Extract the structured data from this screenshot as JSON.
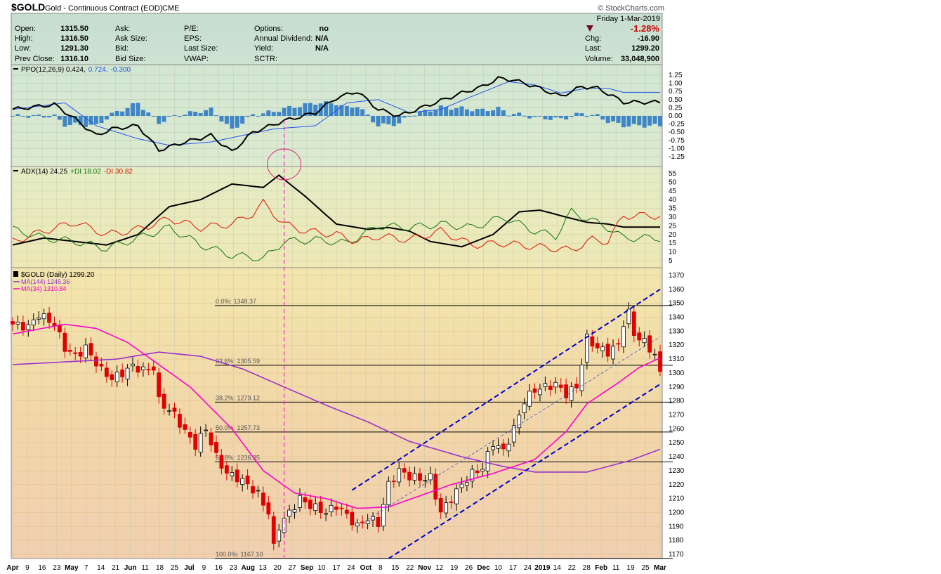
{
  "header": {
    "symbol": "$GOLD",
    "name": "Gold - Continuous Contract (EOD)",
    "exchange": "CME",
    "watermark": "© StockCharts.com",
    "date": "Friday  1-Mar-2019"
  },
  "quote": {
    "open_label": "Open:",
    "open": "1315.50",
    "high_label": "High:",
    "high": "1316.50",
    "low_label": "Low:",
    "low": "1291.30",
    "prev_close_label": "Prev Close:",
    "prev_close": "1316.10",
    "ask_label": "Ask:",
    "ask_size_label": "Ask Size:",
    "bid_label": "Bid:",
    "bid_size_label": "Bid Size:",
    "pe_label": "P/E:",
    "eps_label": "EPS:",
    "last_size_label": "Last Size:",
    "vwap_label": "VWAP:",
    "options_label": "Options:",
    "options": "no",
    "annual_dividend_label": "Annual Dividend:",
    "annual_dividend": "N/A",
    "yield_label": "Yield:",
    "yield": "N/A",
    "sctr_label": "SCTR:",
    "pct_change": "-1.28%",
    "chg_label": "Chg:",
    "chg": "-16.90",
    "last_label": "Last:",
    "last": "1299.20",
    "volume_label": "Volume:",
    "volume": "33,048,900"
  },
  "colors": {
    "up": "#000000",
    "down": "#e00000",
    "ma144": "#9933cc",
    "ma34": "#ff00cc",
    "ppo": "#000000",
    "ppo_signal": "#2255ee",
    "ppo_hist": "#3f86c6",
    "adx": "#000000",
    "plus_di": "#117711",
    "minus_di": "#dd1100",
    "channel": "#0000cc",
    "pct_change": "#cc0000"
  },
  "chart_data": [
    {
      "type": "line",
      "panel": "PPO",
      "legend": [
        "PPO(12,26,9) 0.424,",
        "0.724,",
        "-0.300"
      ],
      "yticks": [
        "1.25",
        "1.00",
        "0.75",
        "0.50",
        "0.25",
        "0.00",
        "-0.25",
        "-0.50",
        "-0.75",
        "-1.00",
        "-1.25"
      ],
      "ylim": [
        -1.4,
        1.4
      ],
      "series": [
        {
          "key": "ppo",
          "anchors": [
            [
              0,
              0.2
            ],
            [
              8,
              0.35
            ],
            [
              12,
              -0.1
            ],
            [
              16,
              -0.6
            ],
            [
              19,
              -0.4
            ],
            [
              24,
              -0.3
            ],
            [
              28,
              -1.05
            ],
            [
              33,
              -0.8
            ],
            [
              38,
              -0.6
            ],
            [
              42,
              -1.1
            ],
            [
              46,
              -0.5
            ],
            [
              52,
              -0.15
            ],
            [
              58,
              0.1
            ],
            [
              62,
              0.55
            ],
            [
              66,
              0.75
            ],
            [
              70,
              0.2
            ],
            [
              74,
              0.0
            ],
            [
              80,
              0.35
            ],
            [
              86,
              0.7
            ],
            [
              90,
              0.9
            ],
            [
              93,
              1.15
            ],
            [
              96,
              1.1
            ],
            [
              100,
              0.9
            ],
            [
              105,
              0.6
            ],
            [
              109,
              0.9
            ],
            [
              112,
              0.85
            ],
            [
              115,
              0.6
            ],
            [
              117,
              0.42
            ]
          ]
        },
        {
          "key": "signal",
          "anchors": [
            [
              0,
              0.2
            ],
            [
              10,
              0.4
            ],
            [
              16,
              -0.3
            ],
            [
              24,
              -0.7
            ],
            [
              30,
              -0.9
            ],
            [
              38,
              -0.8
            ],
            [
              44,
              -0.6
            ],
            [
              50,
              -0.4
            ],
            [
              58,
              -0.3
            ],
            [
              64,
              0.4
            ],
            [
              70,
              0.5
            ],
            [
              76,
              0.1
            ],
            [
              82,
              0.2
            ],
            [
              88,
              0.6
            ],
            [
              95,
              1.05
            ],
            [
              100,
              0.95
            ],
            [
              105,
              0.7
            ],
            [
              110,
              0.85
            ],
            [
              114,
              0.85
            ],
            [
              117,
              0.72
            ]
          ]
        }
      ]
    },
    {
      "type": "line",
      "panel": "ADX",
      "legend": [
        "ADX(14) 24.25",
        "+DI 18.02",
        "-DI 30.82"
      ],
      "yticks": [
        "55",
        "50",
        "45",
        "40",
        "35",
        "30",
        "25",
        "20",
        "15",
        "10",
        "5"
      ],
      "ylim": [
        3,
        57
      ],
      "series": [
        {
          "key": "adx",
          "anchors": [
            [
              0,
              14
            ],
            [
              6,
              18
            ],
            [
              12,
              16
            ],
            [
              18,
              14
            ],
            [
              24,
              20
            ],
            [
              30,
              36
            ],
            [
              36,
              40
            ],
            [
              42,
              49
            ],
            [
              48,
              47
            ],
            [
              51,
              54
            ],
            [
              56,
              42
            ],
            [
              62,
              26
            ],
            [
              68,
              23
            ],
            [
              72,
              24
            ],
            [
              76,
              22
            ],
            [
              80,
              16
            ],
            [
              86,
              13
            ],
            [
              92,
              20
            ],
            [
              97,
              33
            ],
            [
              101,
              34
            ],
            [
              106,
              30
            ],
            [
              110,
              27
            ],
            [
              114,
              26
            ],
            [
              117,
              24.25
            ]
          ]
        },
        {
          "key": "plus_di",
          "anchors": [
            [
              0,
              23
            ],
            [
              6,
              18
            ],
            [
              12,
              16
            ],
            [
              18,
              12
            ],
            [
              24,
              18
            ],
            [
              30,
              24
            ],
            [
              36,
              14
            ],
            [
              42,
              8
            ],
            [
              46,
              7
            ],
            [
              48,
              6
            ],
            [
              52,
              16
            ],
            [
              58,
              17
            ],
            [
              64,
              15
            ],
            [
              70,
              25
            ],
            [
              76,
              24
            ],
            [
              82,
              26
            ],
            [
              88,
              24
            ],
            [
              94,
              30
            ],
            [
              100,
              22
            ],
            [
              104,
              19
            ],
            [
              107,
              33
            ],
            [
              111,
              28
            ],
            [
              114,
              24
            ],
            [
              117,
              18
            ]
          ]
        },
        {
          "key": "minus_di",
          "anchors": [
            [
              0,
              16
            ],
            [
              6,
              22
            ],
            [
              12,
              27
            ],
            [
              18,
              20
            ],
            [
              24,
              23
            ],
            [
              30,
              29
            ],
            [
              36,
              24
            ],
            [
              42,
              26
            ],
            [
              46,
              32
            ],
            [
              48,
              38
            ],
            [
              52,
              26
            ],
            [
              56,
              22
            ],
            [
              62,
              20
            ],
            [
              66,
              16
            ],
            [
              70,
              19
            ],
            [
              76,
              17
            ],
            [
              82,
              22
            ],
            [
              88,
              14
            ],
            [
              94,
              15
            ],
            [
              100,
              13
            ],
            [
              104,
              12
            ],
            [
              107,
              11
            ],
            [
              111,
              17
            ],
            [
              114,
              16
            ],
            [
              117,
              30.82
            ]
          ]
        }
      ]
    },
    {
      "type": "candlestick",
      "panel": "Price",
      "legend": [
        "$GOLD (Daily) 1299.20",
        "MA(144) 1245.36",
        "MA(34) 1310.84"
      ],
      "ylim": [
        1167,
        1372
      ],
      "yticks": [
        1370,
        1360,
        1350,
        1340,
        1330,
        1320,
        1310,
        1300,
        1290,
        1280,
        1270,
        1260,
        1250,
        1240,
        1230,
        1220,
        1210,
        1200,
        1190,
        1180,
        1170
      ],
      "xticks": [
        "Apr",
        "9",
        "16",
        "23",
        "May",
        "7",
        "14",
        "21",
        "Jun",
        "11",
        "18",
        "25",
        "Jul",
        "9",
        "16",
        "23",
        "Aug",
        "13",
        "20",
        "27",
        "Sep",
        "10",
        "17",
        "24",
        "Oct",
        "8",
        "15",
        "22",
        "Nov",
        "12",
        "19",
        "26",
        "Dec",
        "10",
        "17",
        "24",
        "2019",
        "14",
        "22",
        "28",
        "Feb",
        "11",
        "19",
        "25",
        "Mar"
      ],
      "bold_xticks": [
        "Apr",
        "May",
        "Jun",
        "Jul",
        "Aug",
        "Sep",
        "Oct",
        "Nov",
        "Dec",
        "2019",
        "Feb",
        "Mar"
      ],
      "close_anchors": [
        [
          0,
          1335
        ],
        [
          3,
          1333
        ],
        [
          5,
          1342
        ],
        [
          8,
          1335
        ],
        [
          10,
          1318
        ],
        [
          12,
          1312
        ],
        [
          14,
          1318
        ],
        [
          17,
          1302
        ],
        [
          19,
          1296
        ],
        [
          21,
          1300
        ],
        [
          23,
          1305
        ],
        [
          25,
          1302
        ],
        [
          27,
          1304
        ],
        [
          28,
          1280
        ],
        [
          31,
          1270
        ],
        [
          33,
          1258
        ],
        [
          35,
          1248
        ],
        [
          37,
          1260
        ],
        [
          39,
          1240
        ],
        [
          41,
          1228
        ],
        [
          43,
          1225
        ],
        [
          45,
          1220
        ],
        [
          47,
          1213
        ],
        [
          49,
          1200
        ],
        [
          50,
          1175
        ],
        [
          51,
          1190
        ],
        [
          53,
          1200
        ],
        [
          55,
          1210
        ],
        [
          57,
          1205
        ],
        [
          60,
          1200
        ],
        [
          62,
          1205
        ],
        [
          64,
          1198
        ],
        [
          66,
          1190
        ],
        [
          68,
          1196
        ],
        [
          70,
          1192
        ],
        [
          72,
          1220
        ],
        [
          74,
          1230
        ],
        [
          76,
          1226
        ],
        [
          78,
          1224
        ],
        [
          80,
          1225
        ],
        [
          81,
          1212
        ],
        [
          82,
          1200
        ],
        [
          84,
          1210
        ],
        [
          86,
          1220
        ],
        [
          88,
          1228
        ],
        [
          90,
          1232
        ],
        [
          92,
          1250
        ],
        [
          94,
          1244
        ],
        [
          96,
          1260
        ],
        [
          98,
          1280
        ],
        [
          100,
          1288
        ],
        [
          102,
          1290
        ],
        [
          104,
          1292
        ],
        [
          106,
          1285
        ],
        [
          108,
          1290
        ],
        [
          110,
          1325
        ],
        [
          112,
          1318
        ],
        [
          114,
          1315
        ],
        [
          116,
          1320
        ],
        [
          117,
          1336
        ],
        [
          118,
          1343
        ],
        [
          119,
          1328
        ],
        [
          121,
          1322
        ],
        [
          123,
          1313
        ],
        [
          124,
          1299.2
        ]
      ],
      "ma144_anchors": [
        [
          0,
          1306
        ],
        [
          20,
          1310
        ],
        [
          28,
          1315
        ],
        [
          36,
          1312
        ],
        [
          44,
          1303
        ],
        [
          52,
          1290
        ],
        [
          60,
          1277
        ],
        [
          68,
          1265
        ],
        [
          76,
          1251
        ],
        [
          86,
          1240
        ],
        [
          94,
          1233
        ],
        [
          100,
          1229
        ],
        [
          110,
          1229
        ],
        [
          118,
          1237
        ],
        [
          124,
          1245.36
        ]
      ],
      "ma34_anchors": [
        [
          0,
          1328
        ],
        [
          10,
          1335
        ],
        [
          16,
          1332
        ],
        [
          22,
          1322
        ],
        [
          28,
          1306
        ],
        [
          34,
          1290
        ],
        [
          42,
          1260
        ],
        [
          48,
          1230
        ],
        [
          54,
          1214
        ],
        [
          60,
          1210
        ],
        [
          66,
          1203
        ],
        [
          72,
          1204
        ],
        [
          78,
          1212
        ],
        [
          84,
          1220
        ],
        [
          92,
          1228
        ],
        [
          100,
          1238
        ],
        [
          106,
          1258
        ],
        [
          110,
          1278
        ],
        [
          116,
          1293
        ],
        [
          120,
          1304
        ],
        [
          124,
          1310.84
        ]
      ],
      "fibonacci": [
        {
          "label": "0.0%: 1348.37",
          "value": 1348.37
        },
        {
          "label": "23.6%: 1305.59",
          "value": 1305.59
        },
        {
          "label": "38.2%: 1279.12",
          "value": 1279.12
        },
        {
          "label": "50.0%: 1257.73",
          "value": 1257.73
        },
        {
          "label": "61.8%: 1236.35",
          "value": 1236.35
        },
        {
          "label": "100.0%: 1167.10",
          "value": 1167.1
        }
      ],
      "channel_upper": [
        [
          65,
          1216
        ],
        [
          124,
          1360
        ]
      ],
      "channel_lower": [
        [
          72,
          1167
        ],
        [
          124,
          1292
        ]
      ],
      "channel_mid": [
        [
          68,
          1195
        ],
        [
          124,
          1326
        ]
      ],
      "marker_index": 52
    }
  ]
}
